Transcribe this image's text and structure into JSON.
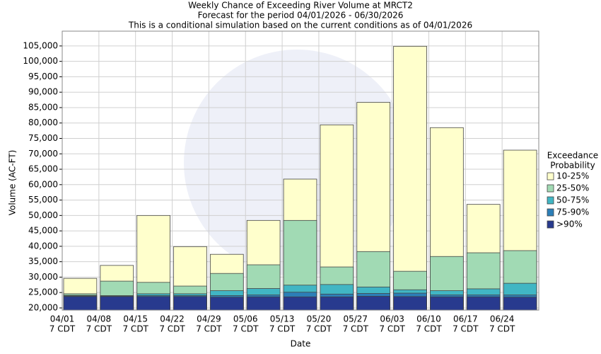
{
  "chart_data": {
    "type": "exceedance-bar",
    "title": "Weekly Chance of Exceeding River Volume at MRCT2",
    "subtitle": "Forecast for the period 04/01/2026 - 06/30/2026",
    "subtitle2": "This is a conditional simulation based on the current conditions as of 04/01/2026",
    "x_label": "Date",
    "y_label": "Volume (AC-FT)",
    "legend_title": [
      "Exceedance",
      "Probability"
    ],
    "categories": [
      [
        "04/01",
        "7 CDT"
      ],
      [
        "04/08",
        "7 CDT"
      ],
      [
        "04/15",
        "7 CDT"
      ],
      [
        "04/22",
        "7 CDT"
      ],
      [
        "04/29",
        "7 CDT"
      ],
      [
        "05/06",
        "7 CDT"
      ],
      [
        "05/13",
        "7 CDT"
      ],
      [
        "05/20",
        "7 CDT"
      ],
      [
        "05/27",
        "7 CDT"
      ],
      [
        "06/03",
        "7 CDT"
      ],
      [
        "06/10",
        "7 CDT"
      ],
      [
        "06/17",
        "7 CDT"
      ],
      [
        "06/24",
        "7 CDT"
      ]
    ],
    "series": [
      {
        "name": ">90%",
        "color": "#283a8e",
        "values": [
          23700,
          23700,
          23700,
          23700,
          23500,
          23600,
          23600,
          23600,
          23800,
          23700,
          23600,
          23600,
          23500
        ]
      },
      {
        "name": "75-90%",
        "color": "#2c7fb8",
        "values": [
          23900,
          23900,
          24000,
          24000,
          24000,
          24200,
          25100,
          24500,
          24700,
          24800,
          24200,
          24200,
          24200
        ]
      },
      {
        "name": "50-75%",
        "color": "#41b6c4",
        "values": [
          24100,
          24000,
          24600,
          24600,
          25600,
          26300,
          27400,
          27600,
          26800,
          25900,
          25600,
          26200,
          28000
        ]
      },
      {
        "name": "25-50%",
        "color": "#a1dab4",
        "values": [
          24600,
          28700,
          28300,
          27100,
          31200,
          34000,
          48400,
          33300,
          38300,
          31900,
          36700,
          37900,
          38600
        ]
      },
      {
        "name": "10-25%",
        "color": "#ffffcc",
        "values": [
          29600,
          33800,
          50000,
          39900,
          37400,
          48400,
          61800,
          79400,
          86700,
          104900,
          78500,
          53600,
          71200
        ]
      }
    ],
    "ylim": [
      19300,
      109800
    ],
    "yticks": [
      {
        "value": 20000,
        "label": "20,000"
      },
      {
        "value": 25000,
        "label": "25,000"
      },
      {
        "value": 30000,
        "label": "30,000"
      },
      {
        "value": 35000,
        "label": "35,000"
      },
      {
        "value": 40000,
        "label": "40,000"
      },
      {
        "value": 45000,
        "label": "45,000"
      },
      {
        "value": 50000,
        "label": "50,000"
      },
      {
        "value": 55000,
        "label": "55,000"
      },
      {
        "value": 60000,
        "label": "60,000"
      },
      {
        "value": 65000,
        "label": "65,000"
      },
      {
        "value": 70000,
        "label": "70,000"
      },
      {
        "value": 75000,
        "label": "75,000"
      },
      {
        "value": 80000,
        "label": "80,000"
      },
      {
        "value": 85000,
        "label": "85,000"
      },
      {
        "value": 90000,
        "label": "90,000"
      },
      {
        "value": 95000,
        "label": "95,000"
      },
      {
        "value": 100000,
        "label": "100,000"
      },
      {
        "value": 105000,
        "label": "105,000"
      }
    ],
    "grid": true
  }
}
